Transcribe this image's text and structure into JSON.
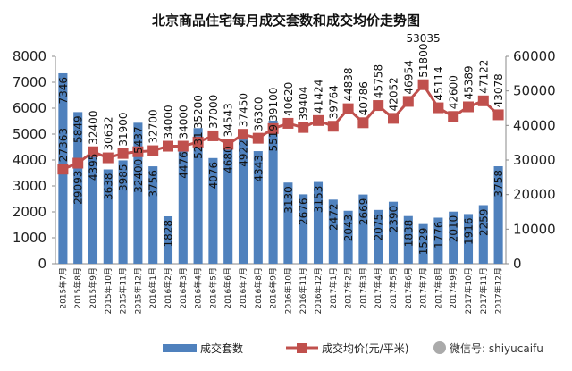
{
  "chart_data": {
    "type": "bar+line",
    "title": "北京商品住宅每月成交套数和成交均价走势图",
    "categories": [
      "2015年7月",
      "2015年8月",
      "2015年9月",
      "2015年10月",
      "2015年11月",
      "2015年12月",
      "2016年1月",
      "2016年2月",
      "2016年3月",
      "2016年4月",
      "2016年5月",
      "2016年6月",
      "2016年7月",
      "2016年8月",
      "2016年9月",
      "2016年10月",
      "2016年11月",
      "2016年12月",
      "2017年1月",
      "2017年2月",
      "2017年3月",
      "2017年4月",
      "2017年5月",
      "2017年6月",
      "2017年7月",
      "2017年8月",
      "2017年9月",
      "2017年10月",
      "2017年11月",
      "2017年12月"
    ],
    "series": [
      {
        "name": "成交套数",
        "type": "bar",
        "axis": "left",
        "color": "#4f81bd",
        "values": [
          7346,
          5849,
          4395,
          3638,
          3985,
          5437,
          3756,
          1828,
          4476,
          5231,
          4076,
          4680,
          4922,
          4343,
          5519,
          3130,
          2676,
          3153,
          2472,
          2043,
          2669,
          2075,
          2390,
          1838,
          1529,
          1776,
          2010,
          1916,
          2259,
          3758
        ]
      },
      {
        "name": "成交均价(元/平米)",
        "type": "line",
        "axis": "right",
        "color": "#c0504d",
        "values": [
          27363,
          29093,
          32400,
          30632,
          31900,
          32400,
          32700,
          34000,
          34000,
          35200,
          37000,
          34543,
          37450,
          36300,
          39100,
          40620,
          39404,
          41424,
          39764,
          44838,
          40786,
          45758,
          42052,
          46954,
          51800,
          45114,
          42600,
          45389,
          47122,
          43078
        ]
      }
    ],
    "left_axis": {
      "ylim": [
        0,
        8000
      ],
      "ticks": [
        0,
        1000,
        2000,
        3000,
        4000,
        5000,
        6000,
        7000,
        8000
      ]
    },
    "right_axis": {
      "ylim": [
        0,
        60000
      ],
      "ticks": [
        0,
        10000,
        20000,
        30000,
        40000,
        50000,
        60000
      ]
    },
    "annotation": "53035",
    "legend": {
      "placement": "bottom",
      "entries": [
        "成交套数",
        "成交均价(元/平米)"
      ]
    },
    "grid": false
  },
  "watermark": "微信号: shiyucaifu"
}
